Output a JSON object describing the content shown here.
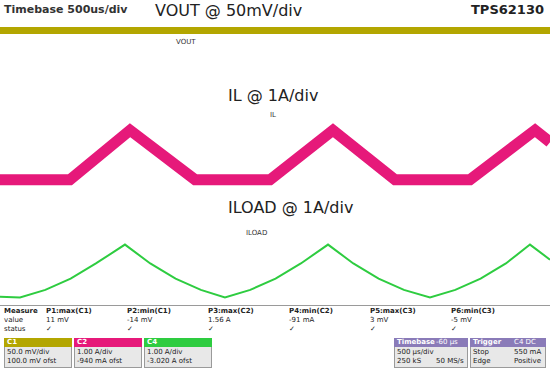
{
  "labels": {
    "timebase": "Timebase 500us/div",
    "device": "TPS62130"
  },
  "chart_data": [
    {
      "type": "line",
      "title": "VOUT @ 50mV/div",
      "x": [
        0,
        500,
        900,
        1150,
        1400,
        2000,
        2700,
        3000,
        3300,
        4000,
        4600,
        4850,
        5000
      ],
      "series": [
        {
          "name": "VOUT",
          "color": "#b3a600",
          "values": [
            0,
            0,
            -2,
            -3,
            0,
            0,
            -2,
            -3,
            0,
            0,
            -2,
            -3,
            0
          ]
        }
      ],
      "xlim": [
        0,
        5000
      ],
      "ylim": [
        -60,
        60
      ],
      "tick_labels": false,
      "grid": false
    },
    {
      "type": "line",
      "title": "IL @ 1A/div",
      "x": [
        0,
        636,
        1182,
        1773,
        2455,
        3027,
        3591,
        4273,
        4864,
        5000
      ],
      "series": [
        {
          "name": "IL",
          "color": "#e6197a",
          "values": [
            0.1,
            0.1,
            1.42,
            0.1,
            0.1,
            1.42,
            0.1,
            0.1,
            1.42,
            1.1
          ]
        }
      ],
      "xlim": [
        0,
        5000
      ],
      "ylim": [
        -0.8,
        1.8
      ],
      "tick_labels": false,
      "grid": false
    },
    {
      "type": "line",
      "title": "ILOAD @ 1A/div",
      "x": [
        0,
        182,
        412,
        642,
        872,
        1136,
        1366,
        1596,
        1826,
        2045,
        2275,
        2505,
        2735,
        2982,
        3212,
        3442,
        3672,
        3909,
        4139,
        4369,
        4599,
        4818,
        5000
      ],
      "series": [
        {
          "name": "ILOAD",
          "color": "#2ecc40",
          "values": [
            0.12,
            0.1,
            0.3,
            0.6,
            1.0,
            1.5,
            1.0,
            0.6,
            0.3,
            0.1,
            0.3,
            0.6,
            1.0,
            1.5,
            1.0,
            0.6,
            0.3,
            0.1,
            0.3,
            0.6,
            1.0,
            1.5,
            1.1
          ]
        }
      ],
      "xlim": [
        0,
        5000
      ],
      "ylim": [
        -0.1,
        2.0
      ],
      "tick_labels": false,
      "grid": false
    }
  ],
  "measure": {
    "header": "Measure",
    "rows": [
      "value",
      "status"
    ],
    "columns": [
      {
        "name": "P1:max(C1)",
        "cells": [
          "11 mV",
          "✓"
        ]
      },
      {
        "name": "P2:min(C1)",
        "cells": [
          "-14 mV",
          "✓"
        ]
      },
      {
        "name": "P3:max(C2)",
        "cells": [
          "1.56 A",
          "✓"
        ]
      },
      {
        "name": "P4:min(C2)",
        "cells": [
          "-91 mA",
          "✓"
        ]
      },
      {
        "name": "P5:max(C3)",
        "cells": [
          "3 mV",
          "✓"
        ]
      },
      {
        "name": "P6:min(C3)",
        "cells": [
          "-5 mV",
          "✓"
        ]
      }
    ]
  },
  "channels": [
    {
      "name": "C1",
      "color": "#b3a600",
      "lines": [
        "50.0 mV/div",
        "100.0 mV ofst"
      ]
    },
    {
      "name": "C2",
      "color": "#e6197a",
      "lines": [
        "1.00 A/div",
        "-940 mA ofst"
      ]
    },
    {
      "name": "C4",
      "color": "#2ecc40",
      "lines": [
        "1.00 A/div",
        "-3.020 A ofst"
      ]
    }
  ],
  "timebase": {
    "label": "Timebase",
    "value": "-60 µs",
    "rows": [
      [
        "500 µs/div",
        ""
      ],
      [
        "250 kS",
        "50 MS/s"
      ]
    ]
  },
  "trigger": {
    "label": "Trigger",
    "value": "C4 DC",
    "rows": [
      [
        "Stop",
        "550 mA"
      ],
      [
        "Edge",
        "Positive"
      ]
    ]
  }
}
